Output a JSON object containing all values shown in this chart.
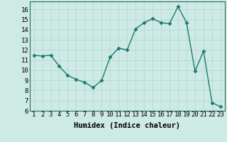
{
  "x": [
    1,
    2,
    3,
    4,
    5,
    6,
    7,
    8,
    9,
    10,
    11,
    12,
    13,
    14,
    15,
    16,
    17,
    18,
    19,
    20,
    21,
    22,
    23
  ],
  "y": [
    11.5,
    11.4,
    11.5,
    10.4,
    9.5,
    9.1,
    8.8,
    8.3,
    9.0,
    11.3,
    12.2,
    12.0,
    14.1,
    14.7,
    15.1,
    14.7,
    14.6,
    16.3,
    14.7,
    9.9,
    11.9,
    6.8,
    6.4
  ],
  "line_color": "#1a7a6e",
  "marker": "D",
  "marker_size": 2.5,
  "bg_color": "#cdeae5",
  "grid_color_major": "#b8d8d3",
  "grid_color_minor": "#cde8e3",
  "xlabel": "Humidex (Indice chaleur)",
  "xlim": [
    0.5,
    23.5
  ],
  "ylim": [
    6,
    16.8
  ],
  "yticks": [
    6,
    7,
    8,
    9,
    10,
    11,
    12,
    13,
    14,
    15,
    16
  ],
  "xticks": [
    1,
    2,
    3,
    4,
    5,
    6,
    7,
    8,
    9,
    10,
    11,
    12,
    13,
    14,
    15,
    16,
    17,
    18,
    19,
    20,
    21,
    22,
    23
  ],
  "tick_fontsize": 6.5,
  "xlabel_fontsize": 7.5,
  "line_width": 1.0
}
